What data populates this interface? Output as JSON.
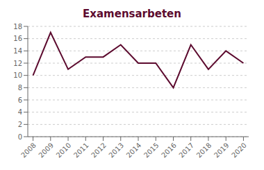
{
  "chart_data": {
    "type": "line",
    "title": "Examensarbeten",
    "x": [
      2008,
      2009,
      2010,
      2011,
      2012,
      2013,
      2014,
      2015,
      2016,
      2017,
      2018,
      2019,
      2020
    ],
    "values": [
      10,
      17,
      11,
      13,
      13,
      15,
      12,
      12,
      8,
      15,
      11,
      14,
      12
    ],
    "color": "#5c0a2e",
    "xlim": [
      2007.7,
      2020.3
    ],
    "xticks": [
      2008,
      2009,
      2010,
      2011,
      2012,
      2013,
      2014,
      2015,
      2016,
      2017,
      2018,
      2019,
      2020
    ],
    "ylim": [
      0,
      18
    ],
    "yticks": [
      0,
      2,
      4,
      6,
      8,
      10,
      12,
      14,
      16,
      18
    ],
    "grid": true
  }
}
